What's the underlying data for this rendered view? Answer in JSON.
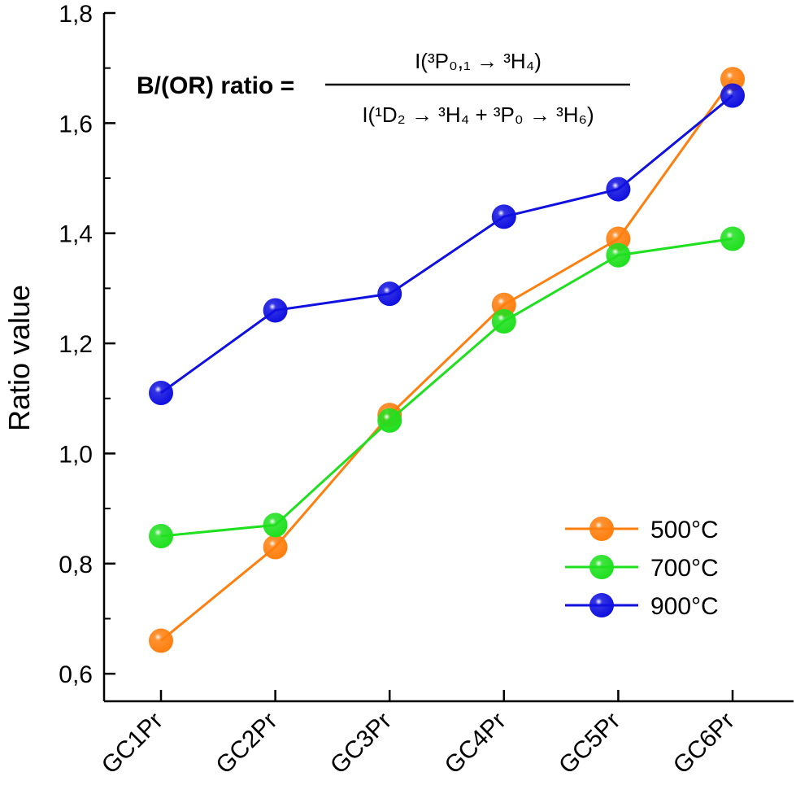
{
  "chart_data": {
    "type": "line",
    "categories": [
      "GC1Pr",
      "GC2Pr",
      "GC3Pr",
      "GC4Pr",
      "GC5Pr",
      "GC6Pr"
    ],
    "series": [
      {
        "name": "500°C",
        "color": "#ff7f0e",
        "values": [
          0.66,
          0.83,
          1.07,
          1.27,
          1.39,
          1.68
        ]
      },
      {
        "name": "700°C",
        "color": "#1fe01f",
        "values": [
          0.85,
          0.87,
          1.06,
          1.24,
          1.36,
          1.39
        ]
      },
      {
        "name": "900°C",
        "color": "#1010e0",
        "values": [
          1.11,
          1.26,
          1.29,
          1.43,
          1.48,
          1.65
        ]
      }
    ],
    "xlabel": "",
    "ylabel": "Ratio value",
    "ylim": [
      0.55,
      1.8
    ],
    "yticks": [
      "0,6",
      "0,8",
      "1,0",
      "1,2",
      "1,4",
      "1,6",
      "1,8"
    ],
    "grid": false,
    "legend_position": "bottom-right",
    "annotation": {
      "lhs": "B/(OR) ratio =",
      "numerator": "I(³P₀,₁ → ³H₄)",
      "denominator": "I(¹D₂ → ³H₄ + ³P₀ → ³H₆)"
    }
  }
}
